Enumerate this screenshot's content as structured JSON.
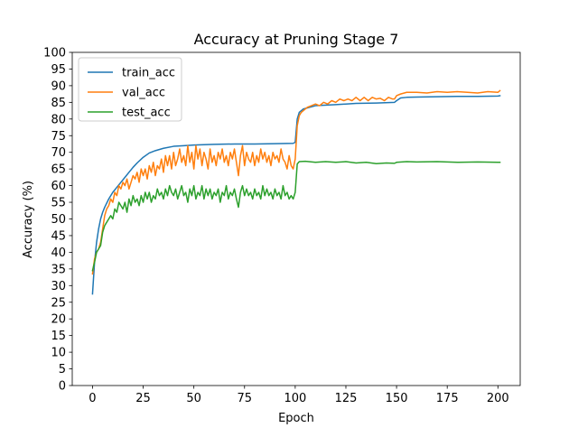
{
  "chart_data": {
    "type": "line",
    "title": "Accuracy at Pruning Stage 7",
    "xlabel": "Epoch",
    "ylabel": "Accuracy (%)",
    "xlim": [
      -10,
      211
    ],
    "ylim": [
      0,
      100
    ],
    "xticks": [
      0,
      25,
      50,
      75,
      100,
      125,
      150,
      175,
      200
    ],
    "yticks": [
      0,
      5,
      10,
      15,
      20,
      25,
      30,
      35,
      40,
      45,
      50,
      55,
      60,
      65,
      70,
      75,
      80,
      85,
      90,
      95,
      100
    ],
    "grid": false,
    "legend": "top-left",
    "series": [
      {
        "name": "train_acc",
        "color": "#1f77b4",
        "points": [
          [
            0,
            27.5
          ],
          [
            1,
            37
          ],
          [
            2,
            43
          ],
          [
            3,
            47
          ],
          [
            4,
            50
          ],
          [
            5,
            52
          ],
          [
            6,
            53.5
          ],
          [
            8,
            56
          ],
          [
            10,
            58
          ],
          [
            12,
            59.5
          ],
          [
            14,
            61
          ],
          [
            16,
            62.5
          ],
          [
            18,
            64
          ],
          [
            20,
            65.5
          ],
          [
            22,
            66.8
          ],
          [
            25,
            68.5
          ],
          [
            28,
            69.8
          ],
          [
            31,
            70.5
          ],
          [
            35,
            71.2
          ],
          [
            40,
            71.8
          ],
          [
            45,
            72
          ],
          [
            50,
            72.2
          ],
          [
            60,
            72.4
          ],
          [
            70,
            72.5
          ],
          [
            80,
            72.5
          ],
          [
            90,
            72.6
          ],
          [
            99,
            72.7
          ],
          [
            100,
            73
          ],
          [
            101,
            80
          ],
          [
            102,
            82
          ],
          [
            104,
            83
          ],
          [
            107,
            83.5
          ],
          [
            110,
            84
          ],
          [
            120,
            84.3
          ],
          [
            130,
            84.7
          ],
          [
            140,
            84.8
          ],
          [
            149,
            85
          ],
          [
            150,
            85.5
          ],
          [
            152,
            86.3
          ],
          [
            155,
            86.5
          ],
          [
            160,
            86.6
          ],
          [
            170,
            86.7
          ],
          [
            180,
            86.8
          ],
          [
            190,
            86.8
          ],
          [
            200,
            86.9
          ],
          [
            201,
            87
          ]
        ]
      },
      {
        "name": "val_acc",
        "color": "#ff7f0e",
        "points": [
          [
            0,
            33.5
          ],
          [
            1,
            38
          ],
          [
            2,
            40
          ],
          [
            3,
            41
          ],
          [
            4,
            43
          ],
          [
            5,
            47
          ],
          [
            6,
            51
          ],
          [
            7,
            53
          ],
          [
            8,
            54
          ],
          [
            9,
            56
          ],
          [
            10,
            55
          ],
          [
            11,
            58
          ],
          [
            12,
            57
          ],
          [
            13,
            60
          ],
          [
            14,
            59
          ],
          [
            15,
            61
          ],
          [
            16,
            60
          ],
          [
            17,
            62
          ],
          [
            18,
            59
          ],
          [
            19,
            61
          ],
          [
            20,
            63
          ],
          [
            21,
            62
          ],
          [
            22,
            64
          ],
          [
            23,
            61
          ],
          [
            24,
            65
          ],
          [
            25,
            63
          ],
          [
            26,
            65
          ],
          [
            27,
            62
          ],
          [
            28,
            66
          ],
          [
            29,
            64
          ],
          [
            30,
            67
          ],
          [
            31,
            63
          ],
          [
            32,
            66
          ],
          [
            33,
            65
          ],
          [
            34,
            68
          ],
          [
            35,
            64
          ],
          [
            36,
            69
          ],
          [
            37,
            66
          ],
          [
            38,
            69
          ],
          [
            39,
            65
          ],
          [
            40,
            70
          ],
          [
            41,
            66
          ],
          [
            42,
            68
          ],
          [
            43,
            71
          ],
          [
            44,
            67
          ],
          [
            45,
            69
          ],
          [
            46,
            66
          ],
          [
            47,
            72
          ],
          [
            48,
            67
          ],
          [
            49,
            70
          ],
          [
            50,
            65
          ],
          [
            51,
            72
          ],
          [
            52,
            68
          ],
          [
            53,
            71
          ],
          [
            54,
            66
          ],
          [
            55,
            70
          ],
          [
            56,
            68
          ],
          [
            57,
            65
          ],
          [
            58,
            71
          ],
          [
            59,
            67
          ],
          [
            60,
            69
          ],
          [
            61,
            66
          ],
          [
            62,
            70
          ],
          [
            63,
            68
          ],
          [
            64,
            71
          ],
          [
            65,
            67
          ],
          [
            66,
            69
          ],
          [
            67,
            66
          ],
          [
            68,
            70
          ],
          [
            69,
            68
          ],
          [
            70,
            71
          ],
          [
            71,
            67
          ],
          [
            72,
            63
          ],
          [
            73,
            69
          ],
          [
            74,
            72
          ],
          [
            75,
            66
          ],
          [
            76,
            70
          ],
          [
            77,
            68
          ],
          [
            78,
            67
          ],
          [
            79,
            70
          ],
          [
            80,
            66
          ],
          [
            81,
            69
          ],
          [
            82,
            67
          ],
          [
            83,
            71
          ],
          [
            84,
            68
          ],
          [
            85,
            70
          ],
          [
            86,
            67
          ],
          [
            87,
            69
          ],
          [
            88,
            66
          ],
          [
            89,
            70
          ],
          [
            90,
            68
          ],
          [
            91,
            69
          ],
          [
            92,
            67
          ],
          [
            93,
            71
          ],
          [
            94,
            68
          ],
          [
            95,
            67
          ],
          [
            96,
            65
          ],
          [
            97,
            69
          ],
          [
            98,
            66
          ],
          [
            99,
            65
          ],
          [
            100,
            68
          ],
          [
            101,
            78
          ],
          [
            102,
            81
          ],
          [
            103,
            82
          ],
          [
            104,
            82.5
          ],
          [
            105,
            83
          ],
          [
            106,
            83.5
          ],
          [
            108,
            84
          ],
          [
            110,
            84.5
          ],
          [
            112,
            84
          ],
          [
            114,
            85
          ],
          [
            116,
            84.5
          ],
          [
            118,
            85.5
          ],
          [
            120,
            85
          ],
          [
            122,
            86
          ],
          [
            124,
            85.5
          ],
          [
            126,
            86
          ],
          [
            128,
            85.5
          ],
          [
            130,
            86.5
          ],
          [
            132,
            85.5
          ],
          [
            134,
            86.5
          ],
          [
            136,
            85.5
          ],
          [
            138,
            86.5
          ],
          [
            140,
            86
          ],
          [
            142,
            86.2
          ],
          [
            144,
            85.5
          ],
          [
            146,
            86.5
          ],
          [
            148,
            86
          ],
          [
            149,
            86
          ],
          [
            150,
            87
          ],
          [
            152,
            87.5
          ],
          [
            155,
            88
          ],
          [
            160,
            88
          ],
          [
            165,
            87.8
          ],
          [
            170,
            88.2
          ],
          [
            175,
            88
          ],
          [
            180,
            88.2
          ],
          [
            185,
            88
          ],
          [
            190,
            87.8
          ],
          [
            195,
            88.2
          ],
          [
            200,
            88
          ],
          [
            201,
            88.5
          ]
        ]
      },
      {
        "name": "test_acc",
        "color": "#2ca02c",
        "points": [
          [
            0,
            34.5
          ],
          [
            1,
            37
          ],
          [
            2,
            40
          ],
          [
            3,
            41
          ],
          [
            4,
            42
          ],
          [
            5,
            46
          ],
          [
            6,
            48
          ],
          [
            7,
            49
          ],
          [
            8,
            50
          ],
          [
            9,
            51
          ],
          [
            10,
            50
          ],
          [
            11,
            53
          ],
          [
            12,
            52
          ],
          [
            13,
            55
          ],
          [
            14,
            54
          ],
          [
            15,
            53
          ],
          [
            16,
            55
          ],
          [
            17,
            52
          ],
          [
            18,
            56
          ],
          [
            19,
            54
          ],
          [
            20,
            57
          ],
          [
            21,
            55
          ],
          [
            22,
            56
          ],
          [
            23,
            54
          ],
          [
            24,
            57
          ],
          [
            25,
            55
          ],
          [
            26,
            58
          ],
          [
            27,
            56
          ],
          [
            28,
            58
          ],
          [
            29,
            55
          ],
          [
            30,
            57
          ],
          [
            31,
            56
          ],
          [
            32,
            59
          ],
          [
            33,
            57
          ],
          [
            34,
            58
          ],
          [
            35,
            56
          ],
          [
            36,
            59
          ],
          [
            37,
            57
          ],
          [
            38,
            60
          ],
          [
            39,
            58
          ],
          [
            40,
            57
          ],
          [
            41,
            59
          ],
          [
            42,
            56
          ],
          [
            43,
            58
          ],
          [
            44,
            60
          ],
          [
            45,
            57
          ],
          [
            46,
            58
          ],
          [
            47,
            55
          ],
          [
            48,
            59
          ],
          [
            49,
            57
          ],
          [
            50,
            60
          ],
          [
            51,
            56
          ],
          [
            52,
            58
          ],
          [
            53,
            57
          ],
          [
            54,
            60
          ],
          [
            55,
            56
          ],
          [
            56,
            59
          ],
          [
            57,
            57
          ],
          [
            58,
            59
          ],
          [
            59,
            56
          ],
          [
            60,
            58
          ],
          [
            61,
            57
          ],
          [
            62,
            59
          ],
          [
            63,
            55
          ],
          [
            64,
            58
          ],
          [
            65,
            57
          ],
          [
            66,
            60
          ],
          [
            67,
            56
          ],
          [
            68,
            58
          ],
          [
            69,
            57
          ],
          [
            70,
            59
          ],
          [
            71,
            56
          ],
          [
            72,
            53.5
          ],
          [
            73,
            58
          ],
          [
            74,
            60
          ],
          [
            75,
            57
          ],
          [
            76,
            59
          ],
          [
            77,
            57
          ],
          [
            78,
            58
          ],
          [
            79,
            56
          ],
          [
            80,
            59
          ],
          [
            81,
            57
          ],
          [
            82,
            58
          ],
          [
            83,
            56
          ],
          [
            84,
            60
          ],
          [
            85,
            57
          ],
          [
            86,
            59
          ],
          [
            87,
            57
          ],
          [
            88,
            58
          ],
          [
            89,
            56
          ],
          [
            90,
            59
          ],
          [
            91,
            57
          ],
          [
            92,
            58
          ],
          [
            93,
            56
          ],
          [
            94,
            60
          ],
          [
            95,
            57
          ],
          [
            96,
            58
          ],
          [
            97,
            56
          ],
          [
            98,
            57
          ],
          [
            99,
            56
          ],
          [
            100,
            58
          ],
          [
            101,
            66.5
          ],
          [
            102,
            67.2
          ],
          [
            105,
            67.3
          ],
          [
            110,
            67
          ],
          [
            115,
            67.2
          ],
          [
            120,
            67
          ],
          [
            125,
            67.2
          ],
          [
            130,
            66.8
          ],
          [
            135,
            67
          ],
          [
            140,
            66.6
          ],
          [
            145,
            66.8
          ],
          [
            149,
            66.7
          ],
          [
            150,
            67
          ],
          [
            155,
            67.2
          ],
          [
            160,
            67.1
          ],
          [
            170,
            67.2
          ],
          [
            180,
            67
          ],
          [
            190,
            67.1
          ],
          [
            200,
            67
          ],
          [
            201,
            67
          ]
        ]
      }
    ]
  }
}
